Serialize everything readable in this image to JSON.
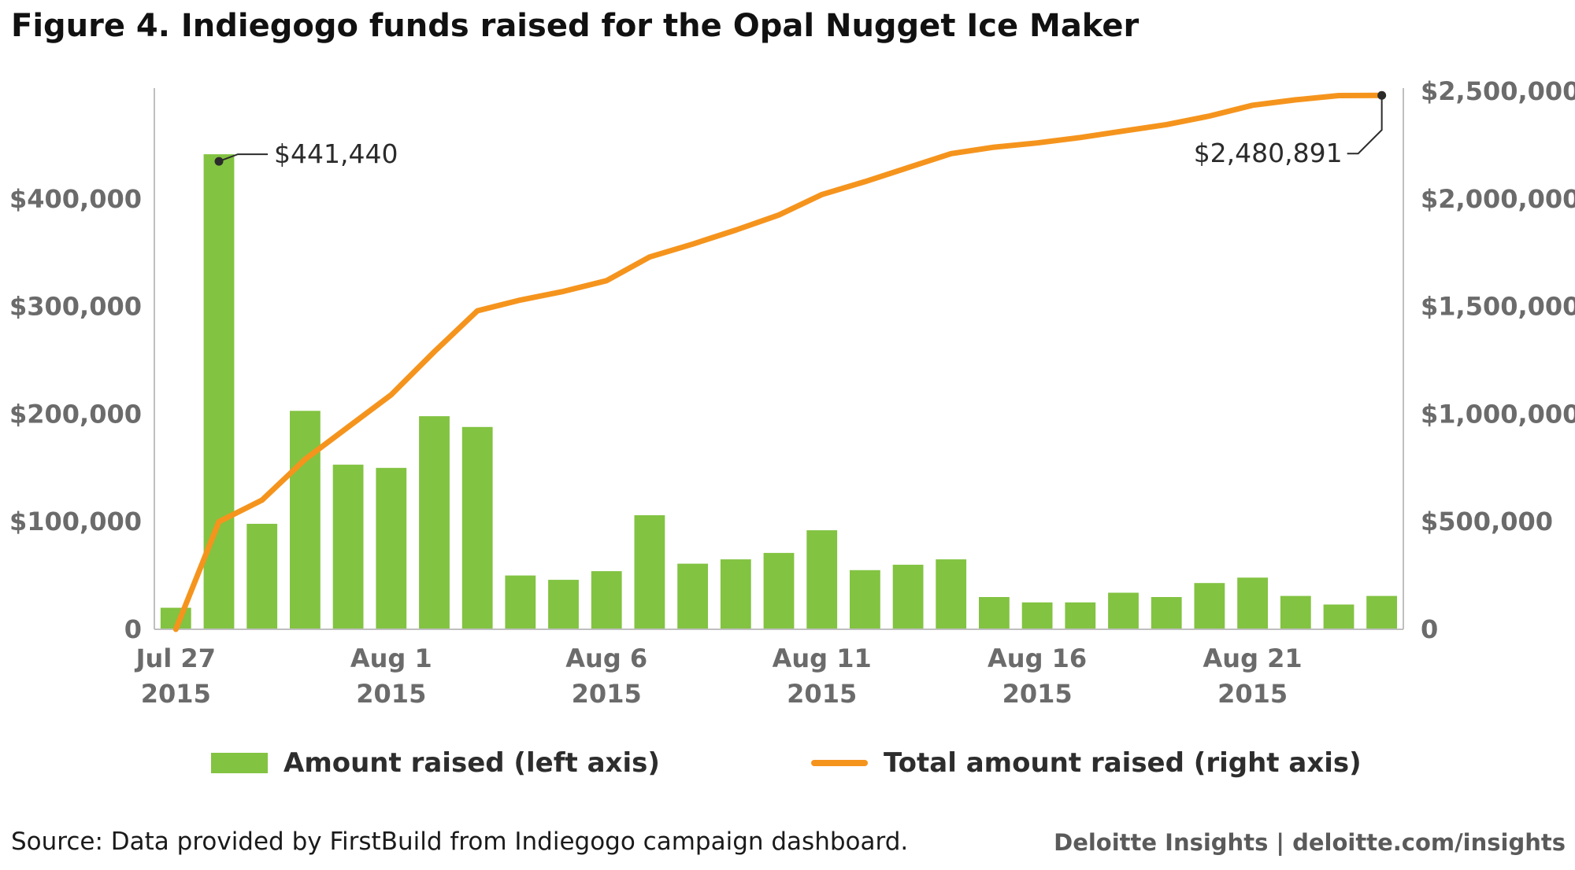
{
  "title": "Figure 4. Indiegogo funds raised for the Opal Nugget Ice Maker",
  "legend": {
    "bar_label": "Amount raised (left axis)",
    "line_label": "Total amount raised (right axis)"
  },
  "footer": {
    "source": "Source: Data provided by FirstBuild from Indiegogo campaign dashboard.",
    "brand": "Deloitte Insights | deloitte.com/insights"
  },
  "colors": {
    "bar": "#82c341",
    "line": "#f5941d",
    "axis": "#bfbfbf",
    "marker": "#2b2b2b"
  },
  "chart_data": {
    "type": "bar",
    "title": "Figure 4. Indiegogo funds raised for the Opal Nugget Ice Maker",
    "xlabel": "",
    "ylabel": "",
    "x": [
      "Jul 27 2015",
      "Jul 28 2015",
      "Jul 29 2015",
      "Jul 30 2015",
      "Jul 31 2015",
      "Aug 1 2015",
      "Aug 2 2015",
      "Aug 3 2015",
      "Aug 4 2015",
      "Aug 5 2015",
      "Aug 6 2015",
      "Aug 7 2015",
      "Aug 8 2015",
      "Aug 9 2015",
      "Aug 10 2015",
      "Aug 11 2015",
      "Aug 12 2015",
      "Aug 13 2015",
      "Aug 14 2015",
      "Aug 15 2015",
      "Aug 16 2015",
      "Aug 17 2015",
      "Aug 18 2015",
      "Aug 19 2015",
      "Aug 20 2015",
      "Aug 21 2015",
      "Aug 22 2015",
      "Aug 23 2015",
      "Aug 24 2015"
    ],
    "x_ticks": [
      {
        "line1": "Jul 27",
        "line2": "2015",
        "index": 0
      },
      {
        "line1": "Aug 1",
        "line2": "2015",
        "index": 5
      },
      {
        "line1": "Aug 6",
        "line2": "2015",
        "index": 10
      },
      {
        "line1": "Aug 11",
        "line2": "2015",
        "index": 15
      },
      {
        "line1": "Aug 16",
        "line2": "2015",
        "index": 20
      },
      {
        "line1": "Aug 21",
        "line2": "2015",
        "index": 25
      }
    ],
    "series": [
      {
        "name": "Amount raised (left axis)",
        "type": "bar",
        "axis": "left",
        "values": [
          20000,
          441440,
          98000,
          203000,
          153000,
          150000,
          198000,
          188000,
          50000,
          46000,
          54000,
          106000,
          61000,
          65000,
          71000,
          92000,
          55000,
          60000,
          65000,
          30000,
          25000,
          25000,
          34000,
          30000,
          43000,
          48000,
          31000,
          23000,
          31000
        ]
      },
      {
        "name": "Total amount raised (right axis)",
        "type": "line",
        "axis": "right",
        "values": [
          0,
          500000,
          600000,
          790000,
          940000,
          1090000,
          1290000,
          1480000,
          1530000,
          1570000,
          1620000,
          1730000,
          1790000,
          1855000,
          1925000,
          2020000,
          2080000,
          2145000,
          2210000,
          2240000,
          2260000,
          2285000,
          2315000,
          2345000,
          2385000,
          2435000,
          2460000,
          2480000,
          2480891
        ]
      }
    ],
    "y_left": {
      "min": 0,
      "max": 500000,
      "ticks": [
        0,
        100000,
        200000,
        300000,
        400000
      ],
      "tick_labels": [
        "0",
        "$100,000",
        "$200,000",
        "$300,000",
        "$400,000"
      ]
    },
    "y_right": {
      "min": 0,
      "max": 2500000,
      "ticks": [
        0,
        500000,
        1000000,
        1500000,
        2000000,
        2500000
      ],
      "tick_labels": [
        "0",
        "$500,000",
        "$1,000,000",
        "$1,500,000",
        "$2,000,000",
        "$2,500,000"
      ]
    },
    "annotations": [
      {
        "series": 0,
        "index": 1,
        "text": "$441,440"
      },
      {
        "series": 1,
        "index": 28,
        "text": "$2,480,891"
      }
    ],
    "grid": false,
    "legend_position": "bottom"
  }
}
